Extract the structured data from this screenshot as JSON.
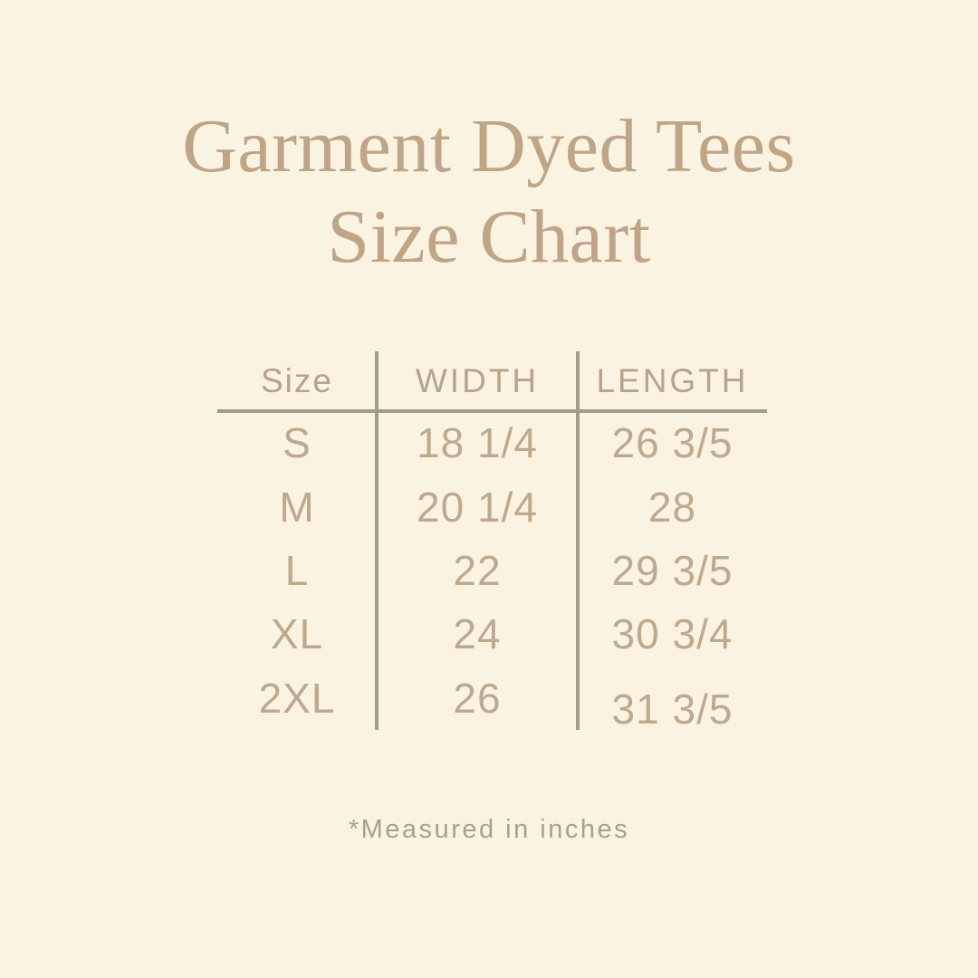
{
  "colors": {
    "background": "#faf3e2",
    "title": "#bfa486",
    "header_text": "#b7a38a",
    "table_text": "#bfa98c",
    "rule": "#a79a8b",
    "footnote": "#ab9e8f"
  },
  "title": {
    "line1": "Garment Dyed Tees",
    "line2": "Size Chart"
  },
  "chart_data": {
    "type": "table",
    "title": "Garment Dyed Tees Size Chart",
    "columns": [
      "Size",
      "WIDTH",
      "LENGTH"
    ],
    "rows": [
      [
        "S",
        "18 1/4",
        "26 3/5"
      ],
      [
        "M",
        "20 1/4",
        "28"
      ],
      [
        "L",
        "22",
        "29 3/5"
      ],
      [
        "XL",
        "24",
        "30 3/4"
      ],
      [
        "2XL",
        "26",
        "31 3/5"
      ]
    ],
    "units": "inches",
    "note": "*Measured in inches"
  },
  "footnote": "*Measured in inches"
}
